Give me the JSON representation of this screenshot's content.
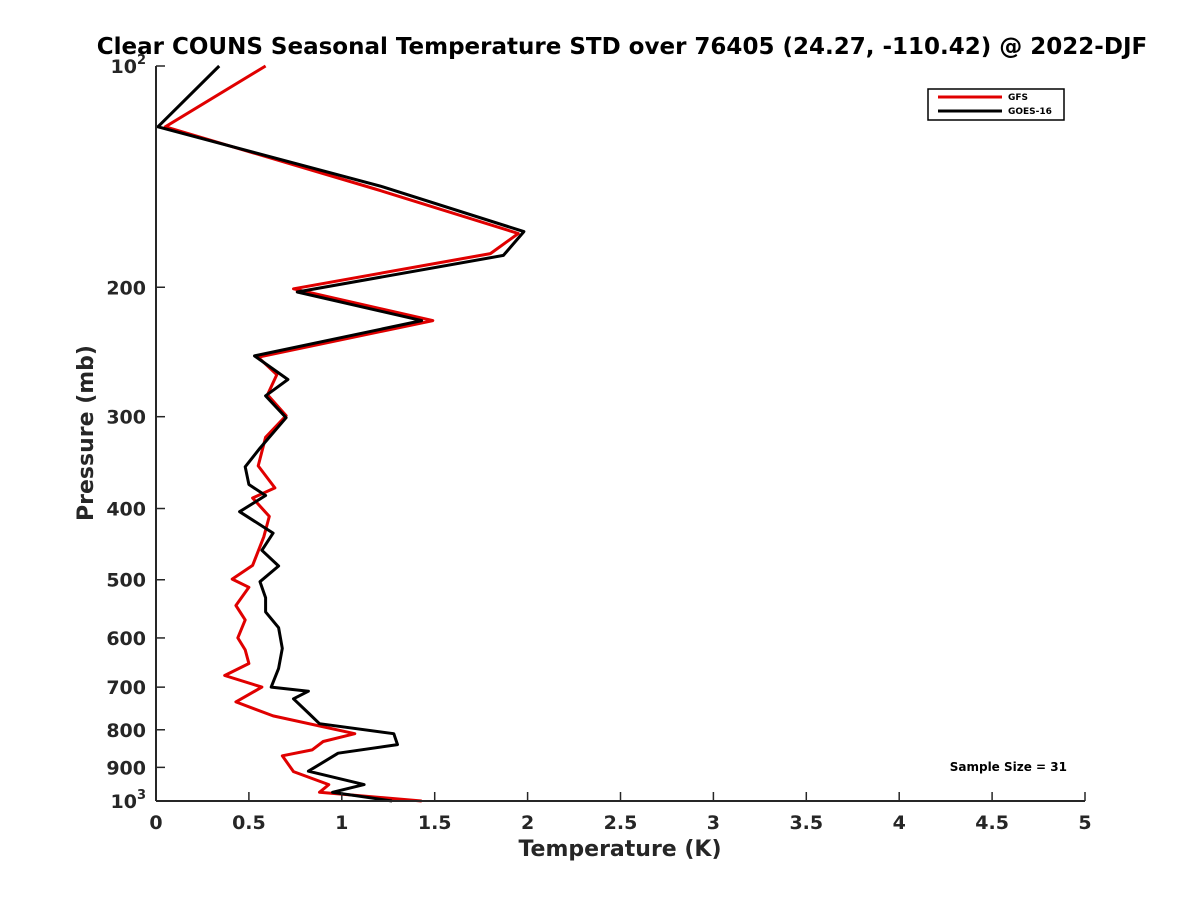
{
  "chart_data": {
    "type": "line",
    "title": "Clear COUNS Seasonal Temperature STD over 76405 (24.27, -110.42) @ 2022-DJF",
    "xlabel": "Temperature (K)",
    "ylabel": "Pressure (mb)",
    "xlim": [
      0,
      5
    ],
    "ylim": [
      100,
      1000
    ],
    "yscale": "log",
    "y_reversed": true,
    "x_ticks": [
      {
        "value": 0,
        "label": "0"
      },
      {
        "value": 0.5,
        "label": "0.5"
      },
      {
        "value": 1,
        "label": "1"
      },
      {
        "value": 1.5,
        "label": "1.5"
      },
      {
        "value": 2,
        "label": "2"
      },
      {
        "value": 2.5,
        "label": "2.5"
      },
      {
        "value": 3,
        "label": "3"
      },
      {
        "value": 3.5,
        "label": "3.5"
      },
      {
        "value": 4,
        "label": "4"
      },
      {
        "value": 4.5,
        "label": "4.5"
      },
      {
        "value": 5,
        "label": "5"
      }
    ],
    "y_ticks": [
      {
        "value": 100,
        "base": "10",
        "sup": "2"
      },
      {
        "value": 200,
        "label": "200"
      },
      {
        "value": 300,
        "label": "300"
      },
      {
        "value": 400,
        "label": "400"
      },
      {
        "value": 500,
        "label": "500"
      },
      {
        "value": 600,
        "label": "600"
      },
      {
        "value": 700,
        "label": "700"
      },
      {
        "value": 800,
        "label": "800"
      },
      {
        "value": 900,
        "label": "900"
      },
      {
        "value": 1000,
        "base": "10",
        "sup": "3"
      }
    ],
    "legend": {
      "position": "top-right",
      "entries": [
        "GFS",
        "GOES-16"
      ]
    },
    "annotation": "Sample Size = 31",
    "series": [
      {
        "name": "GFS",
        "color": "#e00000",
        "points": [
          [
            0.59,
            100
          ],
          [
            0.05,
            121
          ],
          [
            1.18,
            147
          ],
          [
            1.95,
            169
          ],
          [
            1.8,
            180
          ],
          [
            0.74,
            201
          ],
          [
            1.49,
            222
          ],
          [
            0.55,
            249
          ],
          [
            0.65,
            263
          ],
          [
            0.6,
            280
          ],
          [
            0.7,
            299
          ],
          [
            0.59,
            320
          ],
          [
            0.55,
            350
          ],
          [
            0.64,
            375
          ],
          [
            0.52,
            387
          ],
          [
            0.61,
            410
          ],
          [
            0.58,
            437
          ],
          [
            0.52,
            478
          ],
          [
            0.41,
            499
          ],
          [
            0.5,
            512
          ],
          [
            0.43,
            542
          ],
          [
            0.48,
            567
          ],
          [
            0.44,
            600
          ],
          [
            0.48,
            623
          ],
          [
            0.5,
            650
          ],
          [
            0.37,
            675
          ],
          [
            0.57,
            700
          ],
          [
            0.43,
            733
          ],
          [
            0.63,
            766
          ],
          [
            1.07,
            810
          ],
          [
            0.9,
            830
          ],
          [
            0.84,
            852
          ],
          [
            0.68,
            868
          ],
          [
            0.74,
            912
          ],
          [
            0.93,
            950
          ],
          [
            0.88,
            973
          ],
          [
            1.43,
            1000
          ]
        ]
      },
      {
        "name": "GOES-16",
        "color": "#000000",
        "points": [
          [
            0.34,
            100
          ],
          [
            0.01,
            121
          ],
          [
            1.22,
            146
          ],
          [
            1.98,
            168
          ],
          [
            1.87,
            181
          ],
          [
            0.76,
            203
          ],
          [
            1.43,
            222
          ],
          [
            0.53,
            248
          ],
          [
            0.71,
            267
          ],
          [
            0.59,
            281
          ],
          [
            0.7,
            301
          ],
          [
            0.56,
            331
          ],
          [
            0.48,
            351
          ],
          [
            0.5,
            371
          ],
          [
            0.59,
            384
          ],
          [
            0.45,
            404
          ],
          [
            0.63,
            432
          ],
          [
            0.57,
            456
          ],
          [
            0.66,
            479
          ],
          [
            0.56,
            503
          ],
          [
            0.59,
            529
          ],
          [
            0.59,
            553
          ],
          [
            0.66,
            581
          ],
          [
            0.68,
            620
          ],
          [
            0.66,
            660
          ],
          [
            0.62,
            700
          ],
          [
            0.82,
            709
          ],
          [
            0.74,
            726
          ],
          [
            0.82,
            759
          ],
          [
            0.88,
            785
          ],
          [
            1.28,
            810
          ],
          [
            1.3,
            838
          ],
          [
            0.98,
            861
          ],
          [
            0.82,
            911
          ],
          [
            1.12,
            950
          ],
          [
            0.95,
            973
          ],
          [
            1.27,
            1000
          ]
        ]
      }
    ]
  }
}
